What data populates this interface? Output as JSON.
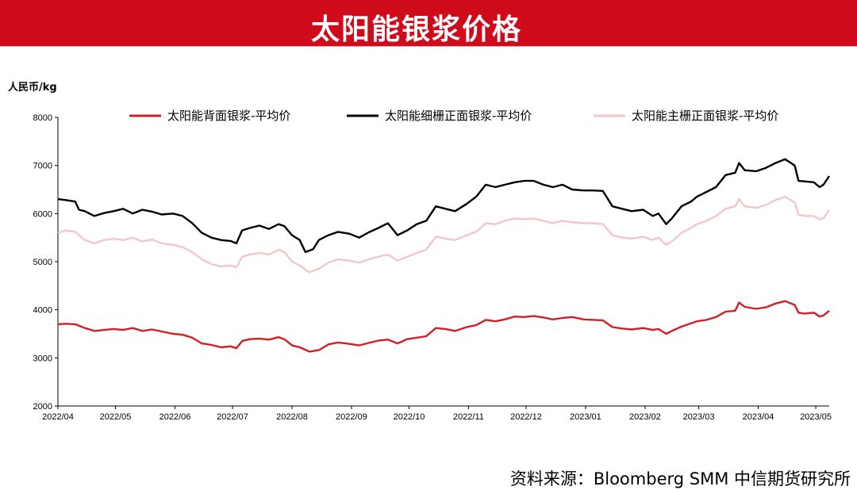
{
  "header": {
    "title": "太阳能银浆价格"
  },
  "footer": {
    "source": "资料来源：Bloomberg SMM 中信期货研究所"
  },
  "chart_data": {
    "type": "line",
    "ylabel": "人民币/kg",
    "ylim": [
      2000,
      8000
    ],
    "yticks": [
      2000,
      3000,
      4000,
      5000,
      6000,
      7000,
      8000
    ],
    "xlim": [
      "2022-04-01",
      "2023-05-08"
    ],
    "xtick_labels": [
      "2022/04",
      "2022/05",
      "2022/06",
      "2022/07",
      "2022/08",
      "2022/09",
      "2022/10",
      "2022/11",
      "2022/12",
      "2023/01",
      "2023/02",
      "2023/03",
      "2023/04",
      "2023/05"
    ],
    "xtick_dates": [
      "2022-04-01",
      "2022-05-01",
      "2022-06-01",
      "2022-07-01",
      "2022-08-01",
      "2022-09-01",
      "2022-10-01",
      "2022-11-01",
      "2022-12-01",
      "2023-01-01",
      "2023-02-01",
      "2023-03-01",
      "2023-04-01",
      "2023-05-01"
    ],
    "grid": false,
    "legend_position": "top",
    "series": [
      {
        "name": "太阳能背面银浆-平均价",
        "color": "#d21f26",
        "points": [
          [
            "2022-04-01",
            3700
          ],
          [
            "2022-04-05",
            3710
          ],
          [
            "2022-04-10",
            3700
          ],
          [
            "2022-04-15",
            3620
          ],
          [
            "2022-04-20",
            3560
          ],
          [
            "2022-04-25",
            3580
          ],
          [
            "2022-04-30",
            3600
          ],
          [
            "2022-05-05",
            3580
          ],
          [
            "2022-05-10",
            3620
          ],
          [
            "2022-05-15",
            3560
          ],
          [
            "2022-05-20",
            3590
          ],
          [
            "2022-05-25",
            3550
          ],
          [
            "2022-05-31",
            3500
          ],
          [
            "2022-06-05",
            3480
          ],
          [
            "2022-06-10",
            3420
          ],
          [
            "2022-06-15",
            3300
          ],
          [
            "2022-06-20",
            3270
          ],
          [
            "2022-06-25",
            3220
          ],
          [
            "2022-06-30",
            3240
          ],
          [
            "2022-07-03",
            3200
          ],
          [
            "2022-07-06",
            3350
          ],
          [
            "2022-07-10",
            3390
          ],
          [
            "2022-07-15",
            3400
          ],
          [
            "2022-07-20",
            3380
          ],
          [
            "2022-07-25",
            3430
          ],
          [
            "2022-07-28",
            3390
          ],
          [
            "2022-08-01",
            3260
          ],
          [
            "2022-08-05",
            3220
          ],
          [
            "2022-08-10",
            3130
          ],
          [
            "2022-08-15",
            3160
          ],
          [
            "2022-08-20",
            3280
          ],
          [
            "2022-08-25",
            3320
          ],
          [
            "2022-08-31",
            3290
          ],
          [
            "2022-09-05",
            3260
          ],
          [
            "2022-09-10",
            3310
          ],
          [
            "2022-09-15",
            3360
          ],
          [
            "2022-09-20",
            3380
          ],
          [
            "2022-09-25",
            3300
          ],
          [
            "2022-09-30",
            3390
          ],
          [
            "2022-10-05",
            3420
          ],
          [
            "2022-10-10",
            3450
          ],
          [
            "2022-10-15",
            3620
          ],
          [
            "2022-10-20",
            3600
          ],
          [
            "2022-10-25",
            3560
          ],
          [
            "2022-10-31",
            3640
          ],
          [
            "2022-11-05",
            3680
          ],
          [
            "2022-11-10",
            3790
          ],
          [
            "2022-11-15",
            3760
          ],
          [
            "2022-11-20",
            3800
          ],
          [
            "2022-11-25",
            3860
          ],
          [
            "2022-11-30",
            3850
          ],
          [
            "2022-12-05",
            3870
          ],
          [
            "2022-12-10",
            3840
          ],
          [
            "2022-12-15",
            3800
          ],
          [
            "2022-12-20",
            3830
          ],
          [
            "2022-12-25",
            3850
          ],
          [
            "2022-12-31",
            3800
          ],
          [
            "2023-01-05",
            3790
          ],
          [
            "2023-01-10",
            3780
          ],
          [
            "2023-01-15",
            3640
          ],
          [
            "2023-01-20",
            3610
          ],
          [
            "2023-01-25",
            3590
          ],
          [
            "2023-01-31",
            3620
          ],
          [
            "2023-02-05",
            3580
          ],
          [
            "2023-02-08",
            3600
          ],
          [
            "2023-02-12",
            3500
          ],
          [
            "2023-02-15",
            3560
          ],
          [
            "2023-02-20",
            3650
          ],
          [
            "2023-02-25",
            3720
          ],
          [
            "2023-02-28",
            3760
          ],
          [
            "2023-03-05",
            3790
          ],
          [
            "2023-03-10",
            3850
          ],
          [
            "2023-03-15",
            3960
          ],
          [
            "2023-03-20",
            3980
          ],
          [
            "2023-03-22",
            4150
          ],
          [
            "2023-03-25",
            4060
          ],
          [
            "2023-03-31",
            4020
          ],
          [
            "2023-04-05",
            4050
          ],
          [
            "2023-04-10",
            4130
          ],
          [
            "2023-04-15",
            4180
          ],
          [
            "2023-04-20",
            4100
          ],
          [
            "2023-04-22",
            3940
          ],
          [
            "2023-04-25",
            3920
          ],
          [
            "2023-04-30",
            3940
          ],
          [
            "2023-05-03",
            3860
          ],
          [
            "2023-05-05",
            3880
          ],
          [
            "2023-05-08",
            3980
          ]
        ]
      },
      {
        "name": "太阳能细栅正面银浆-平均价",
        "color": "#000000",
        "points": [
          [
            "2022-04-01",
            6300
          ],
          [
            "2022-04-05",
            6280
          ],
          [
            "2022-04-10",
            6250
          ],
          [
            "2022-04-12",
            6080
          ],
          [
            "2022-04-15",
            6050
          ],
          [
            "2022-04-20",
            5950
          ],
          [
            "2022-04-25",
            6010
          ],
          [
            "2022-04-30",
            6050
          ],
          [
            "2022-05-05",
            6100
          ],
          [
            "2022-05-10",
            6000
          ],
          [
            "2022-05-15",
            6080
          ],
          [
            "2022-05-20",
            6040
          ],
          [
            "2022-05-25",
            5980
          ],
          [
            "2022-05-31",
            6000
          ],
          [
            "2022-06-05",
            5950
          ],
          [
            "2022-06-10",
            5800
          ],
          [
            "2022-06-15",
            5600
          ],
          [
            "2022-06-20",
            5500
          ],
          [
            "2022-06-25",
            5450
          ],
          [
            "2022-06-30",
            5430
          ],
          [
            "2022-07-03",
            5380
          ],
          [
            "2022-07-06",
            5650
          ],
          [
            "2022-07-10",
            5700
          ],
          [
            "2022-07-15",
            5750
          ],
          [
            "2022-07-20",
            5680
          ],
          [
            "2022-07-25",
            5780
          ],
          [
            "2022-07-28",
            5740
          ],
          [
            "2022-08-01",
            5550
          ],
          [
            "2022-08-05",
            5450
          ],
          [
            "2022-08-08",
            5200
          ],
          [
            "2022-08-12",
            5260
          ],
          [
            "2022-08-15",
            5450
          ],
          [
            "2022-08-20",
            5550
          ],
          [
            "2022-08-25",
            5620
          ],
          [
            "2022-08-31",
            5580
          ],
          [
            "2022-09-05",
            5500
          ],
          [
            "2022-09-10",
            5610
          ],
          [
            "2022-09-15",
            5700
          ],
          [
            "2022-09-20",
            5800
          ],
          [
            "2022-09-25",
            5550
          ],
          [
            "2022-09-30",
            5650
          ],
          [
            "2022-10-05",
            5780
          ],
          [
            "2022-10-10",
            5850
          ],
          [
            "2022-10-15",
            6150
          ],
          [
            "2022-10-20",
            6100
          ],
          [
            "2022-10-25",
            6050
          ],
          [
            "2022-10-31",
            6200
          ],
          [
            "2022-11-05",
            6350
          ],
          [
            "2022-11-10",
            6600
          ],
          [
            "2022-11-15",
            6550
          ],
          [
            "2022-11-20",
            6600
          ],
          [
            "2022-11-25",
            6650
          ],
          [
            "2022-11-30",
            6680
          ],
          [
            "2022-12-05",
            6680
          ],
          [
            "2022-12-10",
            6600
          ],
          [
            "2022-12-15",
            6550
          ],
          [
            "2022-12-20",
            6600
          ],
          [
            "2022-12-25",
            6500
          ],
          [
            "2022-12-31",
            6480
          ],
          [
            "2023-01-05",
            6480
          ],
          [
            "2023-01-10",
            6470
          ],
          [
            "2023-01-15",
            6150
          ],
          [
            "2023-01-20",
            6100
          ],
          [
            "2023-01-25",
            6050
          ],
          [
            "2023-01-31",
            6080
          ],
          [
            "2023-02-05",
            5950
          ],
          [
            "2023-02-08",
            6000
          ],
          [
            "2023-02-12",
            5780
          ],
          [
            "2023-02-15",
            5900
          ],
          [
            "2023-02-20",
            6150
          ],
          [
            "2023-02-25",
            6250
          ],
          [
            "2023-02-28",
            6350
          ],
          [
            "2023-03-05",
            6450
          ],
          [
            "2023-03-10",
            6550
          ],
          [
            "2023-03-15",
            6800
          ],
          [
            "2023-03-20",
            6850
          ],
          [
            "2023-03-22",
            7050
          ],
          [
            "2023-03-25",
            6900
          ],
          [
            "2023-03-31",
            6880
          ],
          [
            "2023-04-05",
            6950
          ],
          [
            "2023-04-10",
            7050
          ],
          [
            "2023-04-15",
            7130
          ],
          [
            "2023-04-20",
            7000
          ],
          [
            "2023-04-22",
            6680
          ],
          [
            "2023-04-25",
            6670
          ],
          [
            "2023-04-30",
            6650
          ],
          [
            "2023-05-03",
            6550
          ],
          [
            "2023-05-05",
            6600
          ],
          [
            "2023-05-08",
            6780
          ]
        ]
      },
      {
        "name": "太阳能主栅正面银浆-平均价",
        "color": "#f4c6c8",
        "points": [
          [
            "2022-04-01",
            5600
          ],
          [
            "2022-04-05",
            5650
          ],
          [
            "2022-04-10",
            5620
          ],
          [
            "2022-04-15",
            5450
          ],
          [
            "2022-04-20",
            5380
          ],
          [
            "2022-04-25",
            5450
          ],
          [
            "2022-04-30",
            5480
          ],
          [
            "2022-05-05",
            5450
          ],
          [
            "2022-05-10",
            5500
          ],
          [
            "2022-05-15",
            5420
          ],
          [
            "2022-05-20",
            5460
          ],
          [
            "2022-05-25",
            5380
          ],
          [
            "2022-05-31",
            5350
          ],
          [
            "2022-06-05",
            5300
          ],
          [
            "2022-06-10",
            5200
          ],
          [
            "2022-06-15",
            5050
          ],
          [
            "2022-06-20",
            4950
          ],
          [
            "2022-06-25",
            4900
          ],
          [
            "2022-06-30",
            4920
          ],
          [
            "2022-07-03",
            4880
          ],
          [
            "2022-07-06",
            5100
          ],
          [
            "2022-07-10",
            5150
          ],
          [
            "2022-07-15",
            5180
          ],
          [
            "2022-07-20",
            5150
          ],
          [
            "2022-07-25",
            5250
          ],
          [
            "2022-07-28",
            5200
          ],
          [
            "2022-08-01",
            5000
          ],
          [
            "2022-08-05",
            4920
          ],
          [
            "2022-08-10",
            4780
          ],
          [
            "2022-08-15",
            4850
          ],
          [
            "2022-08-20",
            4980
          ],
          [
            "2022-08-25",
            5050
          ],
          [
            "2022-08-31",
            5020
          ],
          [
            "2022-09-05",
            4980
          ],
          [
            "2022-09-10",
            5050
          ],
          [
            "2022-09-15",
            5100
          ],
          [
            "2022-09-20",
            5150
          ],
          [
            "2022-09-25",
            5020
          ],
          [
            "2022-09-30",
            5100
          ],
          [
            "2022-10-05",
            5180
          ],
          [
            "2022-10-10",
            5250
          ],
          [
            "2022-10-15",
            5520
          ],
          [
            "2022-10-20",
            5480
          ],
          [
            "2022-10-25",
            5450
          ],
          [
            "2022-10-31",
            5550
          ],
          [
            "2022-11-05",
            5620
          ],
          [
            "2022-11-10",
            5800
          ],
          [
            "2022-11-15",
            5780
          ],
          [
            "2022-11-20",
            5850
          ],
          [
            "2022-11-25",
            5900
          ],
          [
            "2022-11-30",
            5880
          ],
          [
            "2022-12-05",
            5900
          ],
          [
            "2022-12-10",
            5850
          ],
          [
            "2022-12-15",
            5800
          ],
          [
            "2022-12-20",
            5850
          ],
          [
            "2022-12-25",
            5820
          ],
          [
            "2022-12-31",
            5800
          ],
          [
            "2023-01-05",
            5800
          ],
          [
            "2023-01-10",
            5780
          ],
          [
            "2023-01-15",
            5550
          ],
          [
            "2023-01-20",
            5500
          ],
          [
            "2023-01-25",
            5480
          ],
          [
            "2023-01-31",
            5520
          ],
          [
            "2023-02-05",
            5450
          ],
          [
            "2023-02-08",
            5500
          ],
          [
            "2023-02-12",
            5350
          ],
          [
            "2023-02-15",
            5420
          ],
          [
            "2023-02-20",
            5600
          ],
          [
            "2023-02-25",
            5700
          ],
          [
            "2023-02-28",
            5780
          ],
          [
            "2023-03-05",
            5850
          ],
          [
            "2023-03-10",
            5950
          ],
          [
            "2023-03-15",
            6100
          ],
          [
            "2023-03-20",
            6150
          ],
          [
            "2023-03-22",
            6300
          ],
          [
            "2023-03-25",
            6150
          ],
          [
            "2023-03-31",
            6120
          ],
          [
            "2023-04-05",
            6180
          ],
          [
            "2023-04-10",
            6280
          ],
          [
            "2023-04-15",
            6350
          ],
          [
            "2023-04-20",
            6230
          ],
          [
            "2023-04-22",
            5980
          ],
          [
            "2023-04-25",
            5950
          ],
          [
            "2023-04-30",
            5950
          ],
          [
            "2023-05-03",
            5880
          ],
          [
            "2023-05-05",
            5900
          ],
          [
            "2023-05-08",
            6080
          ]
        ]
      }
    ]
  }
}
